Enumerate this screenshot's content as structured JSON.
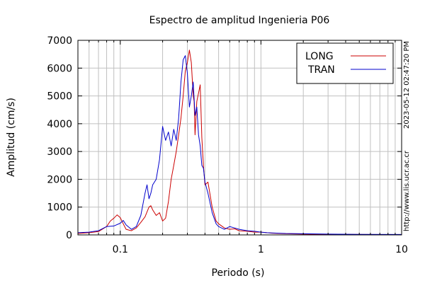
{
  "chart_data": {
    "type": "line",
    "title": "Espectro de amplitud Ingenieria P06",
    "xlabel": "Periodo (s)",
    "ylabel": "Amplitud (cm/s)",
    "x_scale": "log",
    "xlim": [
      0.05,
      10
    ],
    "ylim": [
      0,
      7000
    ],
    "x_ticks": [
      0.1,
      1,
      10
    ],
    "x_tick_labels": [
      "0.1",
      "1",
      "10"
    ],
    "y_ticks": [
      0,
      1000,
      2000,
      3000,
      4000,
      5000,
      6000,
      7000
    ],
    "y_tick_labels": [
      "0",
      "1000",
      "2000",
      "3000",
      "4000",
      "5000",
      "6000",
      "7000"
    ],
    "grid": true,
    "legend_position": "top-right",
    "side_labels": {
      "timestamp": "2023-05-12 02:47:20 PM",
      "url": "http://www.lis.ucr.ac.cr"
    },
    "series": [
      {
        "name": "LONG",
        "color": "#cc0000",
        "x": [
          0.05,
          0.06,
          0.07,
          0.08,
          0.085,
          0.09,
          0.095,
          0.1,
          0.105,
          0.11,
          0.12,
          0.13,
          0.14,
          0.15,
          0.16,
          0.165,
          0.17,
          0.18,
          0.19,
          0.2,
          0.21,
          0.22,
          0.23,
          0.24,
          0.25,
          0.26,
          0.27,
          0.28,
          0.29,
          0.3,
          0.31,
          0.32,
          0.33,
          0.335,
          0.34,
          0.35,
          0.36,
          0.37,
          0.38,
          0.39,
          0.4,
          0.42,
          0.45,
          0.48,
          0.5,
          0.55,
          0.6,
          0.65,
          0.7,
          0.8,
          0.9,
          1.0,
          1.1,
          1.2,
          1.5,
          2,
          3,
          5,
          10
        ],
        "y": [
          50,
          80,
          120,
          300,
          500,
          600,
          720,
          620,
          400,
          200,
          150,
          250,
          450,
          650,
          1000,
          1050,
          900,
          700,
          800,
          500,
          600,
          1200,
          2000,
          2500,
          3000,
          3600,
          4200,
          5000,
          5900,
          6200,
          6650,
          6200,
          5000,
          4800,
          3600,
          4800,
          5100,
          5400,
          3500,
          2500,
          1800,
          1900,
          1000,
          500,
          400,
          250,
          200,
          220,
          150,
          130,
          100,
          100,
          80,
          60,
          40,
          30,
          20,
          15,
          10
        ]
      },
      {
        "name": "TRAN",
        "color": "#0000cc",
        "x": [
          0.05,
          0.06,
          0.07,
          0.08,
          0.09,
          0.1,
          0.105,
          0.11,
          0.12,
          0.13,
          0.14,
          0.15,
          0.155,
          0.16,
          0.165,
          0.17,
          0.18,
          0.19,
          0.2,
          0.21,
          0.22,
          0.23,
          0.24,
          0.25,
          0.26,
          0.27,
          0.28,
          0.29,
          0.3,
          0.31,
          0.32,
          0.33,
          0.34,
          0.35,
          0.36,
          0.37,
          0.38,
          0.39,
          0.4,
          0.42,
          0.45,
          0.48,
          0.5,
          0.55,
          0.6,
          0.65,
          0.7,
          0.8,
          0.9,
          1.0,
          1.1,
          1.2,
          1.5,
          2,
          3,
          5,
          10
        ],
        "y": [
          80,
          100,
          150,
          300,
          320,
          420,
          520,
          360,
          200,
          300,
          700,
          1500,
          1800,
          1300,
          1500,
          1800,
          2000,
          2700,
          3900,
          3400,
          3700,
          3200,
          3800,
          3400,
          4200,
          5500,
          6300,
          6450,
          5800,
          4600,
          5000,
          5500,
          4300,
          4600,
          3600,
          3200,
          2500,
          2400,
          1900,
          1500,
          800,
          400,
          300,
          200,
          300,
          250,
          200,
          150,
          130,
          100,
          80,
          70,
          50,
          40,
          30,
          20,
          15
        ]
      }
    ]
  }
}
